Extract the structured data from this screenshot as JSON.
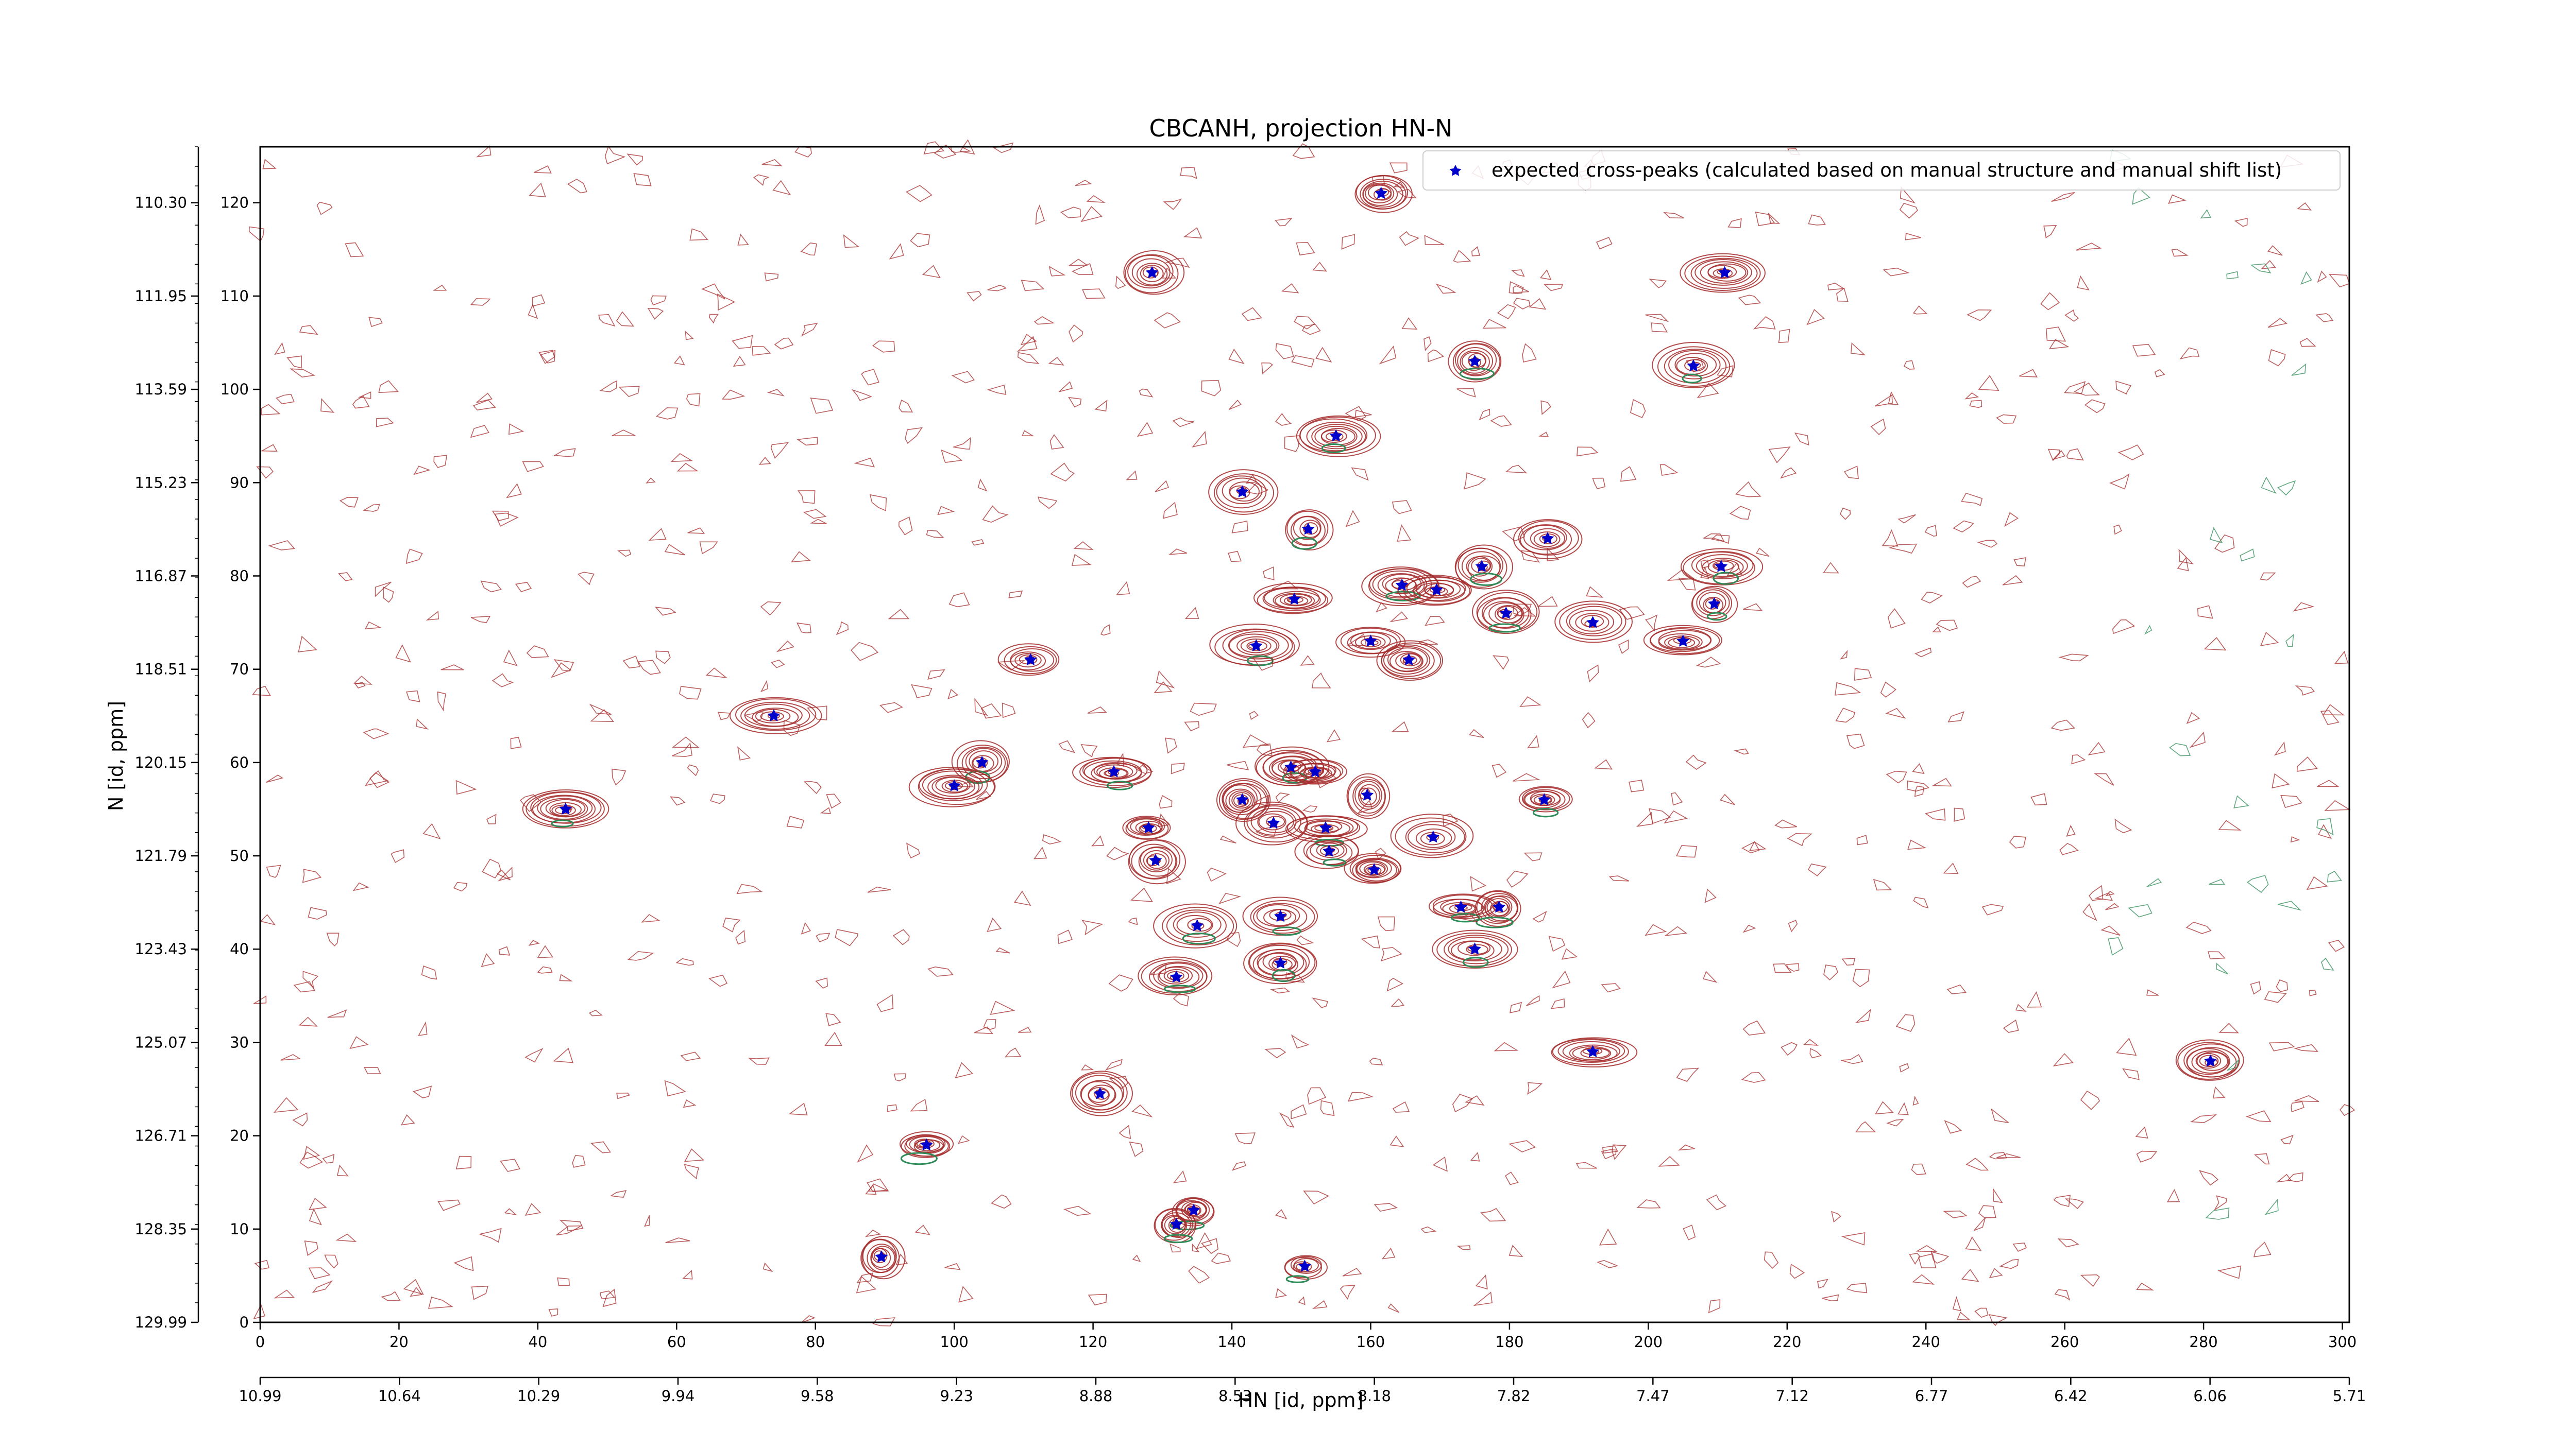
{
  "chart_data": {
    "type": "scatter",
    "title": "CBCANH, projection HN-N",
    "xlabel": "HN [id, ppm]",
    "ylabel": "N [id, ppm]",
    "xlim": [
      0,
      301
    ],
    "ylim": [
      0,
      126
    ],
    "x_ticks": [
      0,
      20,
      40,
      60,
      80,
      100,
      120,
      140,
      160,
      180,
      200,
      220,
      240,
      260,
      280,
      300
    ],
    "y_ticks": [
      0,
      10,
      20,
      30,
      40,
      50,
      60,
      70,
      80,
      90,
      100,
      110,
      120
    ],
    "x_ppm_labels": [
      "10.99",
      "10.64",
      "10.29",
      "9.94",
      "9.58",
      "9.23",
      "8.88",
      "8.53",
      "8.18",
      "7.82",
      "7.47",
      "7.12",
      "6.77",
      "6.42",
      "6.06",
      "5.71"
    ],
    "y_ppm_labels": [
      "129.99",
      "128.35",
      "126.71",
      "125.07",
      "123.43",
      "121.79",
      "120.15",
      "118.51",
      "116.87",
      "115.23",
      "113.59",
      "111.95",
      "110.30"
    ],
    "grid": false,
    "legend": "top-right",
    "series": [
      {
        "name": "expected cross-peaks (calculated based on manual structure and manual shift list)",
        "color": "#0000cc",
        "marker": "star",
        "points": [
          [
            161.5,
            121
          ],
          [
            128.5,
            112.5
          ],
          [
            211,
            112.5
          ],
          [
            175,
            103
          ],
          [
            206.5,
            102.5
          ],
          [
            155,
            95
          ],
          [
            141.5,
            89
          ],
          [
            151,
            85
          ],
          [
            185.5,
            84
          ],
          [
            176,
            81
          ],
          [
            210.5,
            81
          ],
          [
            164.5,
            79
          ],
          [
            169.5,
            78.5
          ],
          [
            149,
            77.5
          ],
          [
            179.5,
            76
          ],
          [
            209.5,
            77
          ],
          [
            192,
            75
          ],
          [
            143.5,
            72.5
          ],
          [
            160,
            73
          ],
          [
            205,
            73
          ],
          [
            165.5,
            71
          ],
          [
            111,
            71
          ],
          [
            74,
            65
          ],
          [
            104,
            60
          ],
          [
            100,
            57.5
          ],
          [
            123,
            59
          ],
          [
            148.5,
            59.5
          ],
          [
            152,
            59
          ],
          [
            141.5,
            56
          ],
          [
            159.5,
            56.5
          ],
          [
            185,
            56
          ],
          [
            146,
            53.5
          ],
          [
            153.5,
            53
          ],
          [
            128,
            53
          ],
          [
            169,
            52
          ],
          [
            154,
            50.5
          ],
          [
            129,
            49.5
          ],
          [
            160.5,
            48.5
          ],
          [
            173,
            44.5
          ],
          [
            178.5,
            44.5
          ],
          [
            135,
            42.5
          ],
          [
            147,
            43.5
          ],
          [
            175,
            40
          ],
          [
            147,
            38.5
          ],
          [
            132,
            37
          ],
          [
            192,
            29
          ],
          [
            281,
            28
          ],
          [
            121,
            24.5
          ],
          [
            96,
            19
          ],
          [
            134.5,
            12
          ],
          [
            132,
            10.5
          ],
          [
            89.5,
            7
          ],
          [
            150.5,
            6
          ],
          [
            44,
            55
          ]
        ]
      }
    ],
    "contour_series": [
      {
        "name": "positive contours",
        "color": "#a52a2a"
      },
      {
        "name": "negative contours",
        "color": "#2e8b57"
      }
    ]
  }
}
